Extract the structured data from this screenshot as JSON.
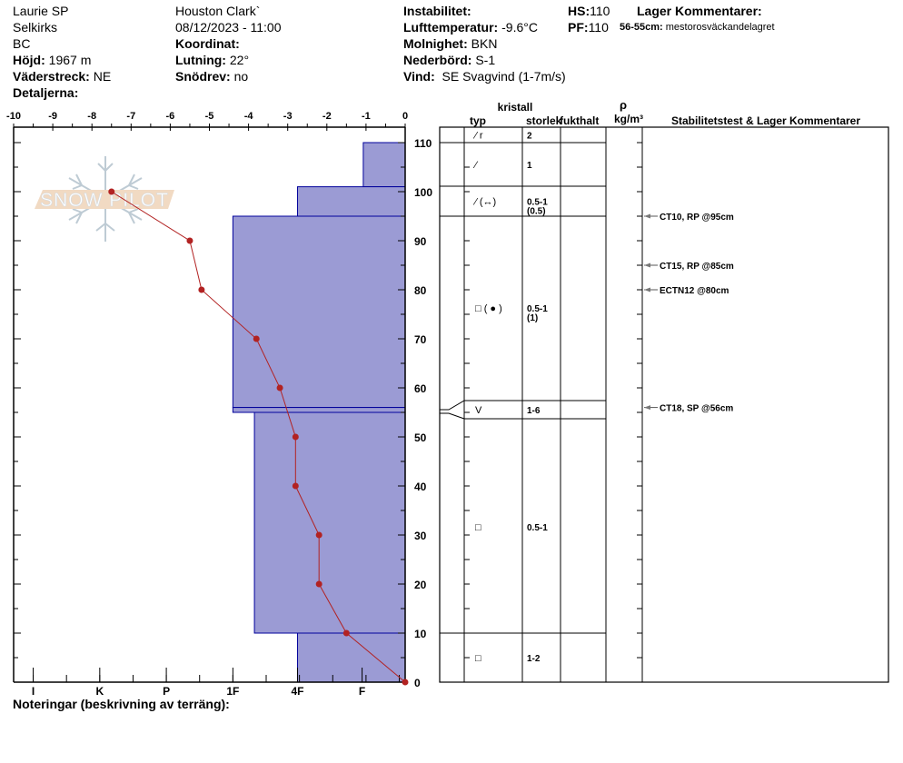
{
  "header": {
    "observer": "Laurie SP",
    "range": "Selkirks",
    "region": "BC",
    "elevation_label": "Höjd:",
    "elevation": "1967 m",
    "aspect_label": "Väderstreck:",
    "aspect": "NE",
    "details_label": "Detaljerna:",
    "location": "Houston Clark`",
    "datetime": "08/12/2023 - 11:00",
    "coord_label": "Koordinat:",
    "slope_label": "Lutning:",
    "slope": "22°",
    "drift_label": "Snödrev:",
    "drift": "no",
    "instability_label": "Instabilitet:",
    "airtemp_label": "Lufttemperatur:",
    "airtemp": "-9.6°C",
    "sky_label": "Molnighet:",
    "sky": "BKN",
    "precip_label": "Nederbörd:",
    "precip": "S-1",
    "wind_label": "Vind:",
    "wind": "SE Svagvind (1-7m/s)",
    "hs_label": "HS:",
    "hs": "110",
    "pf_label": "PF:",
    "pf": "110",
    "layer_comments_label": "Lager Kommentarer:",
    "layer_comment_range": "56-55cm:",
    "layer_comment": "mestorosväckandelagret",
    "notes_label": "Noteringar (beskrivning av terräng):"
  },
  "table_headers": {
    "crystal": "kristall",
    "type": "typ",
    "size": "storlek",
    "moisture": "fukthalt",
    "rho": "ρ",
    "density": "kg/m³",
    "stability": "Stabilitetstest & Lager Kommentarer"
  },
  "watermark": "SNOW PILOT",
  "chart_data": {
    "type": "snow-profile",
    "temp_axis": {
      "ticks": [
        "-10",
        "-9",
        "-8",
        "-7",
        "-6",
        "-5",
        "-4",
        "-3",
        "-2",
        "-1",
        "0"
      ],
      "range": [
        -10,
        0
      ]
    },
    "depth_axis": {
      "ticks": [
        "0",
        "10",
        "20",
        "30",
        "40",
        "50",
        "60",
        "70",
        "80",
        "90",
        "100",
        "110"
      ],
      "range": [
        0,
        110
      ]
    },
    "hardness_axis": {
      "ticks": [
        "I",
        "K",
        "P",
        "1F",
        "4F",
        "F"
      ],
      "positions": [
        -9.5,
        -7.8,
        -6.1,
        -4.4,
        -2.75,
        -1.1
      ]
    },
    "colors": {
      "hardness_fill": "#9b9bd4",
      "hardness_stroke": "#00009b",
      "temp": "#b22222"
    },
    "hardness_layers": [
      {
        "top": 110,
        "bottom": 101,
        "hardness_value": -1.07
      },
      {
        "top": 101,
        "bottom": 95,
        "hardness_value": -2.75
      },
      {
        "top": 95,
        "bottom": 56,
        "hardness_value": -4.4
      },
      {
        "top": 56,
        "bottom": 55,
        "hardness_value": -4.4
      },
      {
        "top": 55,
        "bottom": 10,
        "hardness_value": -3.85
      },
      {
        "top": 10,
        "bottom": 0,
        "hardness_value": -2.75
      }
    ],
    "temperature_profile": [
      {
        "depth": 100,
        "temp": -7.5
      },
      {
        "depth": 90,
        "temp": -5.5
      },
      {
        "depth": 80,
        "temp": -5.2
      },
      {
        "depth": 70,
        "temp": -3.8
      },
      {
        "depth": 60,
        "temp": -3.2
      },
      {
        "depth": 50,
        "temp": -2.8
      },
      {
        "depth": 40,
        "temp": -2.8
      },
      {
        "depth": 30,
        "temp": -2.2
      },
      {
        "depth": 20,
        "temp": -2.2
      },
      {
        "depth": 10,
        "temp": -1.5
      },
      {
        "depth": 0,
        "temp": 0
      }
    ],
    "crystal_rows": [
      {
        "type": "⁄ r",
        "size": "2",
        "size2": ""
      },
      {
        "type": "⁄",
        "size": "1",
        "size2": ""
      },
      {
        "type": "⁄ (↔)",
        "size": "0.5-1",
        "size2": "(0.5)"
      },
      {
        "type": "□ ( ● )",
        "size": "0.5-1",
        "size2": "(1)"
      },
      {
        "type": "V",
        "size": "1-6",
        "size2": ""
      },
      {
        "type": "□",
        "size": "0.5-1",
        "size2": ""
      },
      {
        "type": "□",
        "size": "1-2",
        "size2": ""
      }
    ],
    "stability_tests": [
      {
        "label": "CT10, RP @95cm",
        "depth": 95
      },
      {
        "label": "CT15, RP @85cm",
        "depth": 85
      },
      {
        "label": "ECTN12 @80cm",
        "depth": 80
      },
      {
        "label": "CT18, SP @56cm",
        "depth": 56
      }
    ]
  }
}
